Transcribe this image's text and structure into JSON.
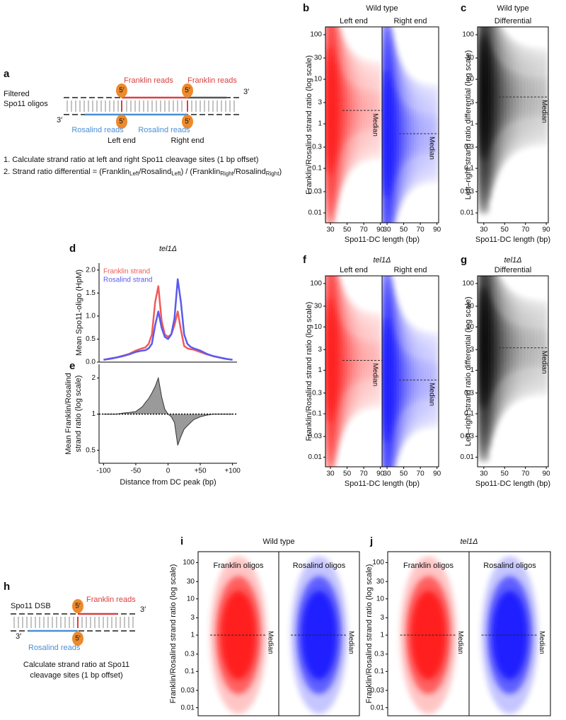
{
  "diagram_a": {
    "label": "a",
    "strand_label": [
      "Filtered",
      "Spo11 oligos"
    ],
    "top_reads": [
      "Franklin reads",
      "Franklin reads"
    ],
    "bottom_reads": [
      "Rosalind reads",
      "Rosalind reads"
    ],
    "five_prime": [
      "5′",
      "5′",
      "5′",
      "5′"
    ],
    "three_prime": [
      "3′",
      "3′"
    ],
    "ends": [
      "Left end",
      "Right end"
    ],
    "step_1": "1. Calculate strand ratio at left and right Spo11 cleavage sites (1 bp offset)",
    "step_2_parts": [
      "2. Strand ratio differential = (Franklin",
      "Left",
      "/Rosalind",
      "Left",
      ") / (Franklin",
      "Right",
      "/Rosalind",
      "Right",
      ")"
    ]
  },
  "diagram_h": {
    "label": "h",
    "strand_label": "Spo11 DSB",
    "top_reads": "Franklin reads",
    "bottom_reads": "Rosalind reads",
    "five_prime": [
      "5′",
      "5′"
    ],
    "three_prime": [
      "3′",
      "3′"
    ],
    "caption": [
      "Calculate strand ratio at Spo11",
      "cleavage sites (1 bp offset)"
    ]
  },
  "chart_data": [
    {
      "type": "density",
      "label": "b",
      "title": "Wild type",
      "title_italic": false,
      "ylabel": "Franklin/Rosalind strand ratio (log scale)",
      "xlabel": "Spo11-DC length (bp)",
      "log_y": true,
      "ylim": [
        0.006,
        150
      ],
      "yticks": [
        0.01,
        0.03,
        0.1,
        0.3,
        1,
        3,
        10,
        30,
        100
      ],
      "xlim": [
        24,
        92
      ],
      "xticks": [
        30,
        50,
        70,
        90
      ],
      "median_label": "Median",
      "facets": [
        {
          "name": "Left end",
          "color": "#ff1a1a",
          "median": 2
        },
        {
          "name": "Right end",
          "color": "#1a1aff",
          "median": 0.6
        }
      ]
    },
    {
      "type": "density",
      "label": "c",
      "title": "Wild type",
      "title_italic": false,
      "ylabel": "Left–right strand ratio differential (log scale)",
      "xlabel": "Spo11-DC length (bp)",
      "log_y": true,
      "ylim": [
        0.006,
        150
      ],
      "yticks": [
        0.01,
        0.03,
        0.1,
        0.3,
        1,
        3,
        10,
        30,
        100
      ],
      "xlim": [
        24,
        92
      ],
      "xticks": [
        30,
        50,
        70,
        90
      ],
      "median_label": "Median",
      "facets": [
        {
          "name": "Differential",
          "color": "#000000",
          "median": 4
        }
      ]
    },
    {
      "type": "line",
      "label": "d",
      "title": "tel1Δ",
      "title_italic": true,
      "ylabel": "Mean Spo11-oligo (HpM)",
      "ylim": [
        0,
        2.15
      ],
      "yticks": [
        {
          "value": 0,
          "label": "0.0"
        },
        0.5,
        {
          "value": 1,
          "label": "1.0"
        },
        1.5,
        {
          "value": 2,
          "label": "2.0"
        }
      ],
      "xlim": [
        -107,
        107
      ],
      "x": [
        -100,
        -90,
        -80,
        -70,
        -60,
        -50,
        -40,
        -35,
        -30,
        -25,
        -20,
        -15,
        -10,
        -5,
        0,
        5,
        10,
        15,
        20,
        25,
        30,
        35,
        40,
        50,
        60,
        70,
        80,
        90,
        100
      ],
      "series": [
        {
          "name": "Franklin strand",
          "color": "#f05a5a",
          "values": [
            0.05,
            0.08,
            0.1,
            0.14,
            0.18,
            0.25,
            0.3,
            0.32,
            0.4,
            0.6,
            1.3,
            1.65,
            0.9,
            0.6,
            0.55,
            0.6,
            0.8,
            1.1,
            0.7,
            0.35,
            0.3,
            0.28,
            0.27,
            0.22,
            0.17,
            0.13,
            0.1,
            0.07,
            0.05
          ]
        },
        {
          "name": "Rosalind strand",
          "color": "#5a5af0",
          "values": [
            0.05,
            0.07,
            0.1,
            0.13,
            0.17,
            0.22,
            0.25,
            0.26,
            0.3,
            0.4,
            0.8,
            1.1,
            0.75,
            0.55,
            0.5,
            0.6,
            0.95,
            1.8,
            1.3,
            0.6,
            0.4,
            0.33,
            0.3,
            0.25,
            0.18,
            0.13,
            0.1,
            0.07,
            0.05
          ]
        }
      ]
    },
    {
      "type": "area",
      "label": "e",
      "ylabel": [
        "Mean Franklin/Rosalind",
        "strand ratio (log scale)"
      ],
      "xlabel": "Distance from DC peak (bp)",
      "log_y": true,
      "ylim": [
        0.39,
        2.6
      ],
      "yticks": [
        0.5,
        1,
        2
      ],
      "reference_line": 1,
      "xlim": [
        -107,
        107
      ],
      "xticks": [
        -100,
        -50,
        0,
        {
          "value": 50,
          "label": "+50"
        },
        {
          "value": 100,
          "label": "+100"
        }
      ],
      "color": "#9a9a9a",
      "x": [
        -100,
        -90,
        -80,
        -70,
        -60,
        -50,
        -40,
        -35,
        -30,
        -25,
        -20,
        -15,
        -10,
        -5,
        0,
        5,
        10,
        15,
        20,
        25,
        30,
        35,
        40,
        50,
        60,
        70,
        80,
        90,
        100
      ],
      "values": [
        1,
        1,
        1,
        1.02,
        1.03,
        1.05,
        1.15,
        1.25,
        1.35,
        1.5,
        1.7,
        2.0,
        1.4,
        1.1,
        1.0,
        0.95,
        0.85,
        0.55,
        0.65,
        0.75,
        0.8,
        0.85,
        0.9,
        0.95,
        0.98,
        1,
        1,
        1,
        1
      ]
    },
    {
      "type": "density",
      "label": "f",
      "title": "tel1Δ",
      "title_italic": true,
      "ylabel": "Franklin/Rosalind strand ratio (log scale)",
      "xlabel": "Spo11-DC length (bp)",
      "log_y": true,
      "ylim": [
        0.006,
        150
      ],
      "yticks": [
        0.01,
        0.03,
        0.1,
        0.3,
        1,
        3,
        10,
        30,
        100
      ],
      "xlim": [
        24,
        92
      ],
      "xticks": [
        30,
        50,
        70,
        90
      ],
      "median_label": "Median",
      "facets": [
        {
          "name": "Left end",
          "color": "#ff1a1a",
          "median": 1.7
        },
        {
          "name": "Right end",
          "color": "#1a1aff",
          "median": 0.6
        }
      ]
    },
    {
      "type": "density",
      "label": "g",
      "title": "tel1Δ",
      "title_italic": true,
      "ylabel": "Left–right strand ratio differential (log scale)",
      "xlabel": "Spo11-DC length (bp)",
      "log_y": true,
      "ylim": [
        0.006,
        150
      ],
      "yticks": [
        0.01,
        0.03,
        0.1,
        0.3,
        1,
        3,
        10,
        30,
        100
      ],
      "xlim": [
        24,
        92
      ],
      "xticks": [
        30,
        50,
        70,
        90
      ],
      "median_label": "Median",
      "facets": [
        {
          "name": "Differential",
          "color": "#000000",
          "median": 3.3
        }
      ]
    },
    {
      "type": "density",
      "label": "i",
      "title": "Wild type",
      "title_italic": false,
      "ylabel": "Franklin/Rosalind strand ratio (log scale)",
      "log_y": true,
      "ylim": [
        0.006,
        200
      ],
      "yticks": [
        0.01,
        0.03,
        0.1,
        0.3,
        1,
        3,
        10,
        30,
        100
      ],
      "median_label": "Median",
      "facets": [
        {
          "name": "Franklin oligos",
          "color": "#ff1a1a",
          "median": 1
        },
        {
          "name": "Rosalind oligos",
          "color": "#1a1aff",
          "median": 1
        }
      ]
    },
    {
      "type": "density",
      "label": "j",
      "title": "tel1Δ",
      "title_italic": true,
      "ylabel": "Franklin/Rosalind strand ratio (log scale)",
      "log_y": true,
      "ylim": [
        0.006,
        200
      ],
      "yticks": [
        0.01,
        0.03,
        0.1,
        0.3,
        1,
        3,
        10,
        30,
        100
      ],
      "median_label": "Median",
      "facets": [
        {
          "name": "Franklin oligos",
          "color": "#ff1a1a",
          "median": 1
        },
        {
          "name": "Rosalind oligos",
          "color": "#1a1aff",
          "median": 1
        }
      ]
    }
  ]
}
